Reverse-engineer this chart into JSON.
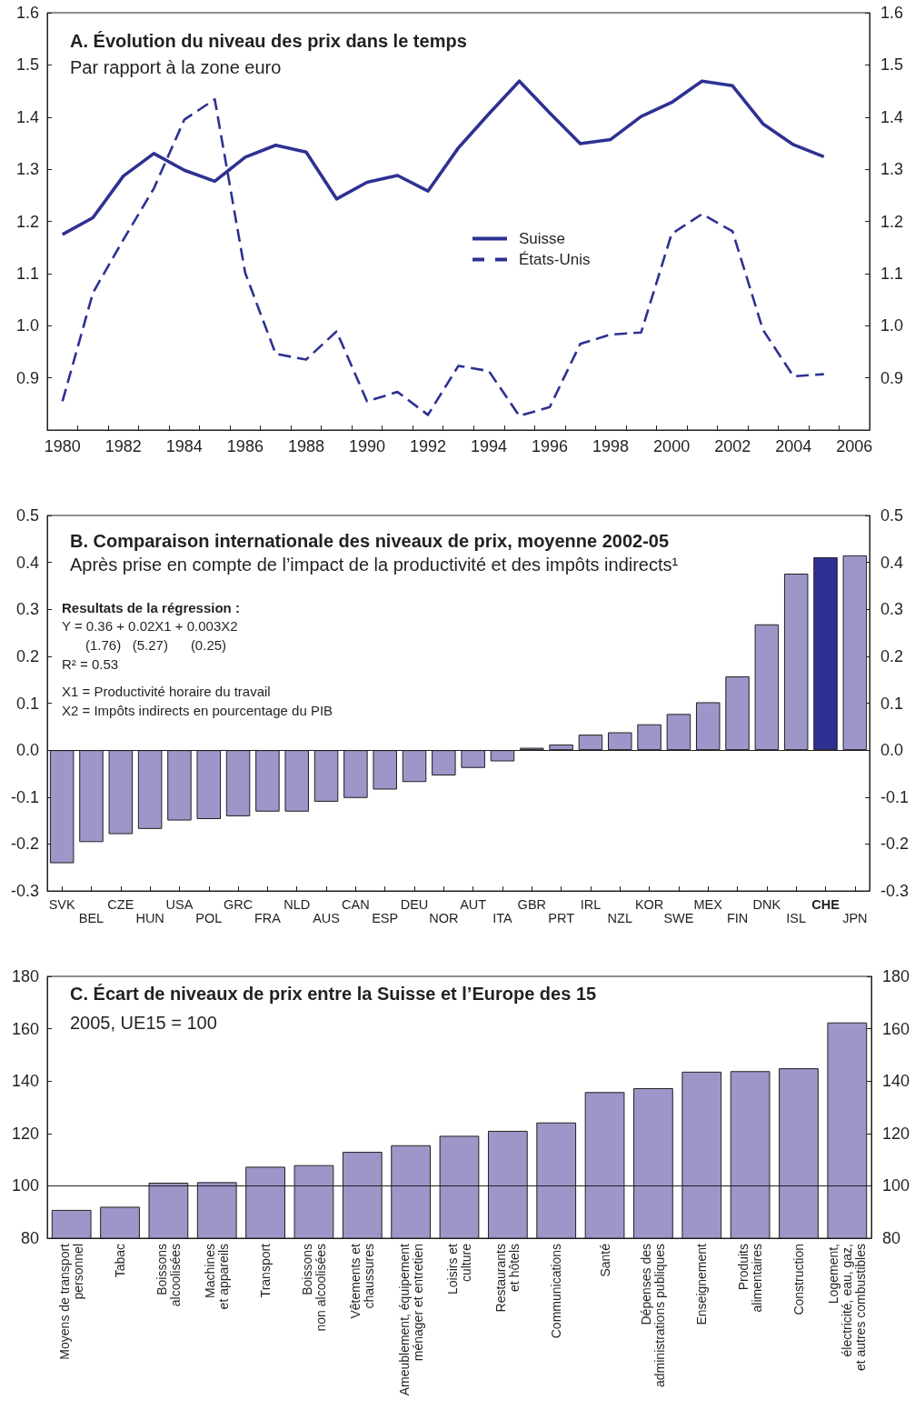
{
  "chart_data": [
    {
      "type": "line",
      "title": "A. Évolution du niveau des prix dans le temps",
      "subtitle": "Par rapport à la zone euro",
      "categories": [
        "1980",
        null,
        "1982",
        null,
        "1984",
        null,
        "1986",
        null,
        "1988",
        null,
        "1990",
        null,
        "1992",
        null,
        "1994",
        null,
        "1996",
        null,
        "1998",
        null,
        "2000",
        null,
        "2002",
        null,
        "2004",
        null,
        "2006"
      ],
      "series": [
        {
          "name": "Suisse",
          "color": "#2e3192",
          "line_style": "solid",
          "values": [
            1.175,
            1.207,
            1.287,
            1.33,
            1.298,
            1.277,
            1.323,
            1.346,
            1.333,
            1.243,
            1.275,
            1.288,
            1.258,
            1.341,
            1.406,
            1.469,
            1.408,
            1.349,
            1.357,
            1.401,
            1.428,
            1.469,
            1.46,
            1.387,
            1.347,
            1.324,
            null
          ]
        },
        {
          "name": "États-Unis",
          "color": "#2e3192",
          "line_style": "dashed",
          "values": [
            0.855,
            1.063,
            1.165,
            1.263,
            1.395,
            1.434,
            1.101,
            0.946,
            0.935,
            0.989,
            0.855,
            0.873,
            0.829,
            0.923,
            0.913,
            0.827,
            0.844,
            0.965,
            0.983,
            0.987,
            1.176,
            1.214,
            1.181,
            0.992,
            0.903,
            0.907,
            null
          ]
        }
      ],
      "ylim": [
        0.8,
        1.6
      ],
      "yticks": [
        0.9,
        {
          "value": 1,
          "label": "1.0"
        },
        1.1,
        1.2,
        1.3,
        1.4,
        1.5,
        1.6
      ],
      "y2lim": [
        0.8,
        1.6
      ],
      "y2ticks": [
        0.9,
        {
          "value": 1,
          "label": "1.0"
        },
        1.1,
        1.2,
        1.3,
        1.4,
        1.5,
        1.6
      ],
      "legend": "center"
    },
    {
      "type": "bar",
      "title": "B. Comparaison internationale des niveaux de prix, moyenne 2002-05",
      "subtitle": "Après prise en compte de l’impact de la productivité et des impôts indirects¹",
      "annotations": [
        "Resultats de la régression :",
        "Y = 0.36 + 0.02X1 + 0.003X2",
        "(1.76)   (5.27)      (0.25)",
        "R² = 0.53",
        "X1 = Productivité horaire du travail",
        "X2 = Impôts indirects en pourcentage du PIB"
      ],
      "categories": [
        "SVK",
        "BEL",
        "CZE",
        "HUN",
        "USA",
        "POL",
        "GRC",
        "FRA",
        "NLD",
        "AUS",
        "CAN",
        "ESP",
        "DEU",
        "NOR",
        "AUT",
        "ITA",
        "GBR",
        "PRT",
        "IRL",
        "NZL",
        "KOR",
        "SWE",
        "MEX",
        "FIN",
        "DNK",
        "ISL",
        "CHE",
        "JPN"
      ],
      "values": [
        -0.241,
        -0.196,
        -0.179,
        -0.168,
        -0.15,
        -0.147,
        -0.141,
        -0.131,
        -0.131,
        -0.11,
        -0.102,
        -0.084,
        -0.068,
        -0.054,
        -0.038,
        -0.024,
        0.005,
        0.012,
        0.033,
        0.038,
        0.055,
        0.077,
        0.102,
        0.157,
        0.268,
        0.376,
        0.411,
        0.415
      ],
      "colors": [
        "#9c97c8",
        "#9c97c8",
        "#9c97c8",
        "#9c97c8",
        "#9c97c8",
        "#9c97c8",
        "#9c97c8",
        "#9c97c8",
        "#9c97c8",
        "#9c97c8",
        "#9c97c8",
        "#9c97c8",
        "#9c97c8",
        "#9c97c8",
        "#9c97c8",
        "#9c97c8",
        "#9c97c8",
        "#9c97c8",
        "#9c97c8",
        "#9c97c8",
        "#9c97c8",
        "#9c97c8",
        "#9c97c8",
        "#9c97c8",
        "#9c97c8",
        "#9c97c8",
        "#2e3192",
        "#9c97c8"
      ],
      "ylim": [
        -0.3,
        0.5
      ],
      "yticks": [
        -0.3,
        -0.2,
        -0.1,
        {
          "value": 0,
          "label": "0.0"
        },
        0.1,
        0.2,
        0.3,
        0.4,
        0.5
      ],
      "y2lim": [
        -0.3,
        0.5
      ],
      "y2ticks": [
        -0.3,
        -0.2,
        -0.1,
        {
          "value": 0,
          "label": "0.0"
        },
        0.1,
        0.2,
        0.3,
        0.4,
        0.5
      ],
      "ref_lines": [
        {
          "axis": "y",
          "value": 0
        }
      ]
    },
    {
      "type": "bar",
      "title": "C. Écart de niveaux de prix entre la Suisse et l’Europe des 15",
      "subtitle": "2005, UE15 = 100",
      "categories": [
        "Moyens de transport\npersonnel",
        "Tabac",
        "Boissons\nalcoolisées",
        "Machines\net appareils",
        "Transport",
        "Boissons\nnon alcoolisées",
        "Vêtements et\nchaussures",
        "Ameublement, équipement\nménager et entretien",
        "Loisirs et\nculture",
        "Restaurants\net hôtels",
        "Communications",
        "Santé",
        "Dépenses des\nadministrations publiques",
        "Enseignement",
        "Produits\nalimentaires",
        "Construction",
        "Logement,\nélectricité, eau, gaz,\net autres combustibles"
      ],
      "values": [
        90.8,
        92,
        101.2,
        101.4,
        107.3,
        107.9,
        113,
        115.5,
        119.1,
        121,
        124.2,
        135.8,
        137.3,
        143.6,
        143.8,
        144.9,
        162.4
      ],
      "color": "#9c97c8",
      "ylim": [
        80,
        180
      ],
      "yticks": [
        80,
        100,
        120,
        140,
        160,
        180
      ],
      "y2lim": [
        80,
        180
      ],
      "y2ticks": [
        80,
        100,
        120,
        140,
        160,
        180
      ],
      "ref_lines": [
        {
          "axis": "y",
          "value": 100
        }
      ]
    }
  ]
}
